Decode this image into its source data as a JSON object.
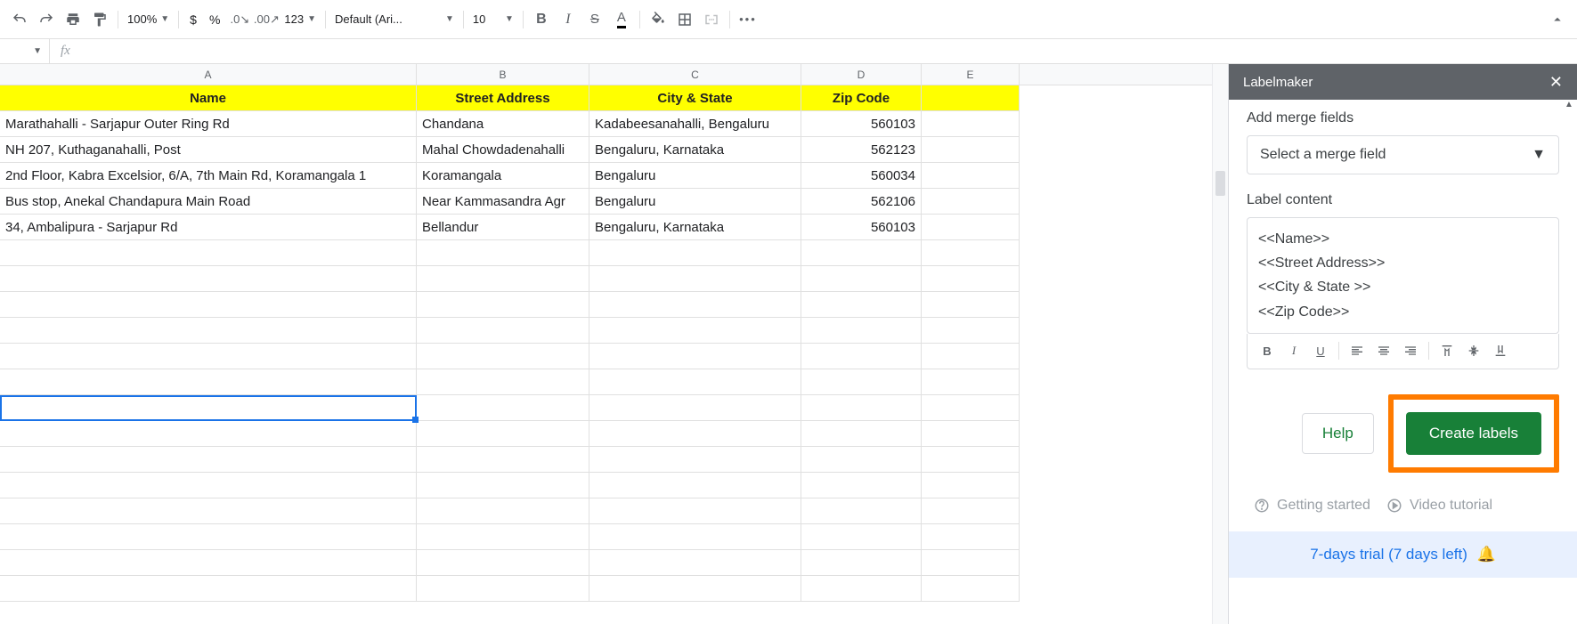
{
  "toolbar": {
    "zoom": "100%",
    "currency": "$",
    "percent": "%",
    "more_formats": "123",
    "font_name": "Default (Ari...",
    "font_size": "10"
  },
  "sheet": {
    "columns": [
      "A",
      "B",
      "C",
      "D",
      "E"
    ],
    "column_widths": {
      "A": 468,
      "B": 194,
      "C": 238,
      "D": 135,
      "E": 110
    },
    "header_row_color": "#ffff00",
    "headers": [
      "Name",
      "Street Address",
      "City & State",
      "Zip Code"
    ],
    "rows": [
      [
        "Marathahalli - Sarjapur Outer Ring Rd",
        "Chandana",
        "Kadabeesanahalli, Bengaluru",
        "560103"
      ],
      [
        "NH 207, Kuthaganahalli, Post",
        "Mahal Chowdadenahalli",
        "Bengaluru, Karnataka",
        "562123"
      ],
      [
        "2nd Floor, Kabra Excelsior, 6/A, 7th Main Rd, Koramangala 1",
        "Koramangala",
        "Bengaluru",
        "560034"
      ],
      [
        "Bus stop, Anekal Chandapura Main Road",
        "Near Kammasandra Agr",
        "Bengaluru",
        "562106"
      ],
      [
        "34, Ambalipura - Sarjapur Rd",
        "Bellandur",
        "Bengaluru, Karnataka",
        "560103"
      ]
    ],
    "selected_cell": "A13",
    "empty_rows": 14
  },
  "sidebar": {
    "title": "Labelmaker",
    "add_merge_label": "Add merge fields",
    "select_placeholder": "Select a merge field",
    "label_content_label": "Label content",
    "label_lines": [
      "<<Name>>",
      "<<Street Address>>",
      "<<City & State >>",
      "<<Zip Code>>"
    ],
    "help_label": "Help",
    "create_label": "Create labels",
    "create_highlight_color": "#ff7b00",
    "create_bg_color": "#188038",
    "getting_started": "Getting started",
    "video_tutorial": "Video tutorial",
    "trial_text": "7-days trial (7 days left)",
    "trial_bg": "#e8f0fe",
    "trial_color": "#1a73e8"
  }
}
